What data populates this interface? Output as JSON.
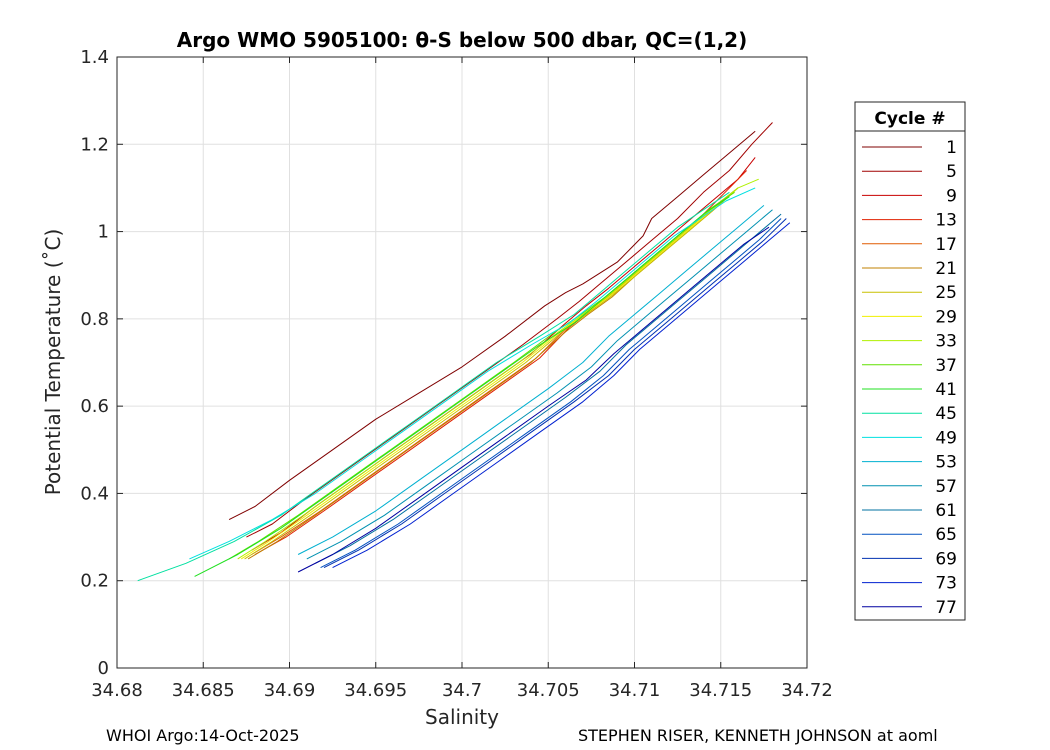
{
  "chart_data": {
    "type": "line",
    "title": "Argo WMO 5905100: θ-S below 500 dbar,  QC=(1,2)",
    "xlabel": "Salinity",
    "ylabel": "Potential Temperature (˚C)",
    "xlim": [
      34.68,
      34.72
    ],
    "ylim": [
      0,
      1.4
    ],
    "xticks": [
      34.68,
      34.685,
      34.69,
      34.695,
      34.7,
      34.705,
      34.71,
      34.715,
      34.72
    ],
    "xtick_labels": [
      "34.68",
      "34.685",
      "34.69",
      "34.695",
      "34.7",
      "34.705",
      "34.71",
      "34.715",
      "34.72"
    ],
    "yticks": [
      0,
      0.2,
      0.4,
      0.6,
      0.8,
      1,
      1.2,
      1.4
    ],
    "ytick_labels": [
      "0",
      "0.2",
      "0.4",
      "0.6",
      "0.8",
      "1",
      "1.2",
      "1.4"
    ],
    "grid": true,
    "legend": {
      "title": "Cycle #",
      "placement": "outside-right",
      "entries": [
        {
          "label": "1",
          "color": "#7f0000"
        },
        {
          "label": "5",
          "color": "#a00000"
        },
        {
          "label": "9",
          "color": "#c80000"
        },
        {
          "label": "13",
          "color": "#e02000"
        },
        {
          "label": "17",
          "color": "#e05a00"
        },
        {
          "label": "21",
          "color": "#c08000"
        },
        {
          "label": "25",
          "color": "#c8c000"
        },
        {
          "label": "29",
          "color": "#f0f000"
        },
        {
          "label": "33",
          "color": "#b0f000"
        },
        {
          "label": "37",
          "color": "#60e000"
        },
        {
          "label": "41",
          "color": "#20e020"
        },
        {
          "label": "45",
          "color": "#00e0a0"
        },
        {
          "label": "49",
          "color": "#00e0e0"
        },
        {
          "label": "53",
          "color": "#00b0d0"
        },
        {
          "label": "57",
          "color": "#0090b0"
        },
        {
          "label": "61",
          "color": "#0070a0"
        },
        {
          "label": "65",
          "color": "#0050c0"
        },
        {
          "label": "69",
          "color": "#0030b0"
        },
        {
          "label": "73",
          "color": "#0020d0"
        },
        {
          "label": "77",
          "color": "#0000a0"
        }
      ]
    },
    "series": [
      {
        "cycle": "1",
        "color": "#7f0000",
        "x": [
          34.6865,
          34.688,
          34.69,
          34.6925,
          34.695,
          34.6975,
          34.7,
          34.7025,
          34.7048,
          34.706,
          34.707,
          34.709,
          34.7105,
          34.711,
          34.7125,
          34.714,
          34.7155,
          34.717
        ],
        "y": [
          0.34,
          0.37,
          0.43,
          0.5,
          0.57,
          0.63,
          0.69,
          0.76,
          0.83,
          0.86,
          0.88,
          0.93,
          0.99,
          1.03,
          1.08,
          1.13,
          1.18,
          1.23
        ]
      },
      {
        "cycle": "5",
        "color": "#a00000",
        "x": [
          34.6875,
          34.689,
          34.691,
          34.6935,
          34.696,
          34.6985,
          34.701,
          34.7035,
          34.7055,
          34.7068,
          34.708,
          34.7095,
          34.711,
          34.7125,
          34.714,
          34.7155,
          34.7168,
          34.718
        ],
        "y": [
          0.3,
          0.33,
          0.39,
          0.46,
          0.53,
          0.6,
          0.67,
          0.74,
          0.8,
          0.84,
          0.88,
          0.93,
          0.98,
          1.03,
          1.09,
          1.14,
          1.2,
          1.25
        ]
      },
      {
        "cycle": "9",
        "color": "#c80000",
        "x": [
          34.6878,
          34.6895,
          34.6915,
          34.694,
          34.6965,
          34.699,
          34.7015,
          34.704,
          34.706,
          34.7072,
          34.7085,
          34.71,
          34.7115,
          34.713,
          34.7145,
          34.716,
          34.717
        ],
        "y": [
          0.27,
          0.31,
          0.37,
          0.44,
          0.51,
          0.58,
          0.65,
          0.72,
          0.79,
          0.83,
          0.87,
          0.92,
          0.97,
          1.02,
          1.07,
          1.12,
          1.17
        ]
      },
      {
        "cycle": "13",
        "color": "#e02000",
        "x": [
          34.688,
          34.6898,
          34.692,
          34.6945,
          34.697,
          34.6995,
          34.702,
          34.7045,
          34.7062,
          34.7075,
          34.709,
          34.7105,
          34.712,
          34.7135,
          34.715,
          34.7165
        ],
        "y": [
          0.26,
          0.3,
          0.36,
          0.43,
          0.5,
          0.57,
          0.64,
          0.71,
          0.78,
          0.82,
          0.87,
          0.92,
          0.97,
          1.02,
          1.08,
          1.14
        ]
      },
      {
        "cycle": "17",
        "color": "#e05a00",
        "x": [
          34.6878,
          34.6895,
          34.6918,
          34.6943,
          34.6968,
          34.6993,
          34.7018,
          34.7043,
          34.7061,
          34.7074,
          34.7088,
          34.7102,
          34.7117,
          34.7132,
          34.7147,
          34.716
        ],
        "y": [
          0.26,
          0.3,
          0.36,
          0.43,
          0.5,
          0.57,
          0.64,
          0.71,
          0.78,
          0.82,
          0.86,
          0.91,
          0.96,
          1.01,
          1.06,
          1.1
        ]
      },
      {
        "cycle": "21",
        "color": "#c08000",
        "x": [
          34.6876,
          34.6893,
          34.6915,
          34.694,
          34.6965,
          34.699,
          34.7015,
          34.704,
          34.706,
          34.7073,
          34.7087,
          34.7101,
          34.7116,
          34.7131,
          34.7146,
          34.716
        ],
        "y": [
          0.25,
          0.29,
          0.35,
          0.42,
          0.49,
          0.56,
          0.63,
          0.7,
          0.77,
          0.81,
          0.85,
          0.9,
          0.95,
          1.0,
          1.05,
          1.1
        ]
      },
      {
        "cycle": "25",
        "color": "#c8c000",
        "x": [
          34.6874,
          34.689,
          34.6912,
          34.6937,
          34.6962,
          34.6987,
          34.7012,
          34.7037,
          34.7058,
          34.7072,
          34.7086,
          34.7101,
          34.7116,
          34.7131,
          34.7146,
          34.716
        ],
        "y": [
          0.25,
          0.29,
          0.35,
          0.42,
          0.49,
          0.56,
          0.63,
          0.7,
          0.77,
          0.81,
          0.85,
          0.9,
          0.95,
          1.0,
          1.05,
          1.1
        ]
      },
      {
        "cycle": "29",
        "color": "#f0f000",
        "x": [
          34.6872,
          34.6888,
          34.691,
          34.6935,
          34.696,
          34.6985,
          34.701,
          34.7035,
          34.7057,
          34.7071,
          34.7085,
          34.71,
          34.7115,
          34.713,
          34.7145,
          34.716
        ],
        "y": [
          0.25,
          0.29,
          0.35,
          0.42,
          0.49,
          0.56,
          0.63,
          0.7,
          0.77,
          0.81,
          0.85,
          0.9,
          0.95,
          1.0,
          1.05,
          1.1
        ]
      },
      {
        "cycle": "33",
        "color": "#b0f000",
        "x": [
          34.687,
          34.6886,
          34.6908,
          34.6933,
          34.6958,
          34.6983,
          34.7008,
          34.7033,
          34.7056,
          34.707,
          34.7084,
          34.7099,
          34.7114,
          34.7129,
          34.7144,
          34.716,
          34.7172
        ],
        "y": [
          0.25,
          0.29,
          0.35,
          0.42,
          0.49,
          0.56,
          0.63,
          0.7,
          0.77,
          0.81,
          0.85,
          0.9,
          0.95,
          1.0,
          1.05,
          1.1,
          1.12
        ]
      },
      {
        "cycle": "37",
        "color": "#60e000",
        "x": [
          34.6865,
          34.6882,
          34.6905,
          34.693,
          34.6955,
          34.698,
          34.7005,
          34.703,
          34.7054,
          34.7069,
          34.7083,
          34.7098,
          34.7113,
          34.7128,
          34.7143,
          34.7158
        ],
        "y": [
          0.25,
          0.29,
          0.35,
          0.42,
          0.49,
          0.56,
          0.63,
          0.7,
          0.77,
          0.81,
          0.85,
          0.9,
          0.95,
          1.0,
          1.05,
          1.09
        ]
      },
      {
        "cycle": "41",
        "color": "#20e020",
        "x": [
          34.6845,
          34.687,
          34.6895,
          34.692,
          34.6945,
          34.697,
          34.6995,
          34.702,
          34.7045,
          34.7065,
          34.708,
          34.7095,
          34.711,
          34.7125,
          34.714,
          34.7155
        ],
        "y": [
          0.21,
          0.26,
          0.32,
          0.39,
          0.46,
          0.53,
          0.6,
          0.67,
          0.74,
          0.79,
          0.84,
          0.89,
          0.94,
          0.99,
          1.04,
          1.08
        ]
      },
      {
        "cycle": "45",
        "color": "#00e0a0",
        "x": [
          34.6812,
          34.684,
          34.6868,
          34.6895,
          34.692,
          34.6945,
          34.697,
          34.6995,
          34.702,
          34.7045,
          34.7065,
          34.708,
          34.7095,
          34.711,
          34.7125,
          34.714,
          34.7155
        ],
        "y": [
          0.2,
          0.24,
          0.29,
          0.35,
          0.42,
          0.49,
          0.56,
          0.63,
          0.7,
          0.76,
          0.81,
          0.86,
          0.91,
          0.96,
          1.01,
          1.05,
          1.09
        ]
      },
      {
        "cycle": "49",
        "color": "#00e0e0",
        "x": [
          34.6842,
          34.6865,
          34.689,
          34.6915,
          34.694,
          34.6965,
          34.699,
          34.7015,
          34.704,
          34.7062,
          34.7078,
          34.7093,
          34.7108,
          34.7123,
          34.7138,
          34.7153,
          34.717
        ],
        "y": [
          0.25,
          0.29,
          0.34,
          0.4,
          0.47,
          0.54,
          0.61,
          0.68,
          0.74,
          0.79,
          0.84,
          0.89,
          0.94,
          0.99,
          1.03,
          1.07,
          1.1
        ]
      },
      {
        "cycle": "53",
        "color": "#00b0d0",
        "x": [
          34.6905,
          34.6925,
          34.695,
          34.6975,
          34.7,
          34.7025,
          34.705,
          34.707,
          34.7085,
          34.71,
          34.7115,
          34.713,
          34.7145,
          34.716,
          34.7175
        ],
        "y": [
          0.26,
          0.3,
          0.36,
          0.43,
          0.5,
          0.57,
          0.64,
          0.7,
          0.76,
          0.81,
          0.86,
          0.91,
          0.96,
          1.01,
          1.06
        ]
      },
      {
        "cycle": "57",
        "color": "#0090b0",
        "x": [
          34.691,
          34.693,
          34.6955,
          34.698,
          34.7005,
          34.703,
          34.7055,
          34.7075,
          34.709,
          34.7105,
          34.712,
          34.7135,
          34.715,
          34.7165,
          34.718
        ],
        "y": [
          0.25,
          0.29,
          0.35,
          0.42,
          0.49,
          0.56,
          0.63,
          0.69,
          0.75,
          0.8,
          0.85,
          0.9,
          0.95,
          1.0,
          1.05
        ]
      },
      {
        "cycle": "61",
        "color": "#0070a0",
        "x": [
          34.6915,
          34.6935,
          34.696,
          34.6985,
          34.701,
          34.7035,
          34.706,
          34.708,
          34.7095,
          34.711,
          34.7125,
          34.714,
          34.7155,
          34.717,
          34.7185
        ],
        "y": [
          0.24,
          0.28,
          0.34,
          0.41,
          0.48,
          0.55,
          0.62,
          0.68,
          0.74,
          0.79,
          0.84,
          0.89,
          0.94,
          0.99,
          1.04
        ]
      },
      {
        "cycle": "65",
        "color": "#0050c0",
        "x": [
          34.6918,
          34.6938,
          34.6963,
          34.6988,
          34.7013,
          34.7038,
          34.7063,
          34.7082,
          34.7097,
          34.7112,
          34.7127,
          34.7142,
          34.7157,
          34.7172,
          34.7185
        ],
        "y": [
          0.23,
          0.27,
          0.33,
          0.4,
          0.47,
          0.54,
          0.61,
          0.67,
          0.73,
          0.78,
          0.83,
          0.88,
          0.93,
          0.98,
          1.03
        ]
      },
      {
        "cycle": "69",
        "color": "#0030b0",
        "x": [
          34.692,
          34.694,
          34.6965,
          34.699,
          34.7015,
          34.704,
          34.7065,
          34.7085,
          34.71,
          34.7115,
          34.713,
          34.7145,
          34.716,
          34.7175,
          34.7188
        ],
        "y": [
          0.23,
          0.27,
          0.33,
          0.4,
          0.47,
          0.54,
          0.61,
          0.67,
          0.73,
          0.78,
          0.83,
          0.88,
          0.93,
          0.98,
          1.03
        ]
      },
      {
        "cycle": "73",
        "color": "#0020d0",
        "x": [
          34.6925,
          34.6945,
          34.697,
          34.6995,
          34.702,
          34.7045,
          34.707,
          34.7088,
          34.7103,
          34.7118,
          34.7133,
          34.7148,
          34.7163,
          34.7178,
          34.719
        ],
        "y": [
          0.23,
          0.27,
          0.33,
          0.4,
          0.47,
          0.54,
          0.61,
          0.67,
          0.73,
          0.78,
          0.83,
          0.88,
          0.93,
          0.98,
          1.02
        ]
      },
      {
        "cycle": "77",
        "color": "#0000a0",
        "x": [
          34.6905,
          34.6925,
          34.695,
          34.6975,
          34.7,
          34.7025,
          34.705,
          34.7072,
          34.7088,
          34.7103,
          34.7118,
          34.7133,
          34.7148,
          34.7163,
          34.7178
        ],
        "y": [
          0.22,
          0.26,
          0.32,
          0.39,
          0.46,
          0.53,
          0.6,
          0.66,
          0.72,
          0.77,
          0.82,
          0.87,
          0.92,
          0.97,
          1.01
        ]
      }
    ]
  },
  "footer": {
    "left": "WHOI Argo:14-Oct-2025",
    "right": "STEPHEN RISER, KENNETH JOHNSON at aoml"
  }
}
